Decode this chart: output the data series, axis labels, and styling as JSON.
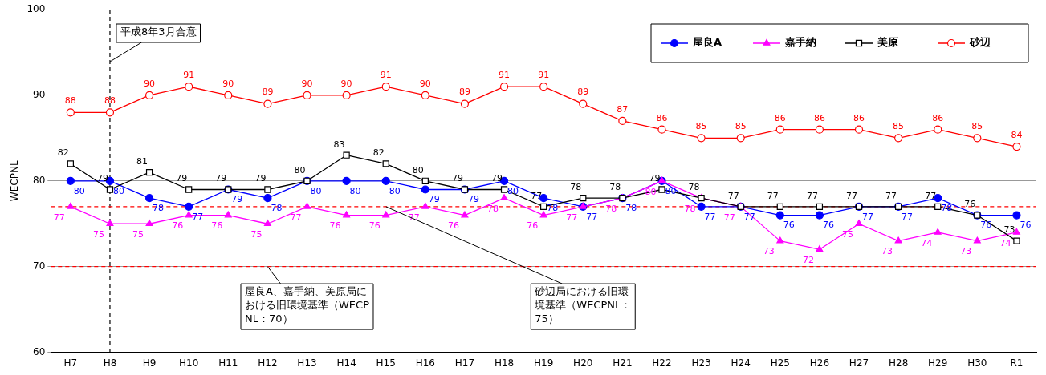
{
  "chart_data": {
    "type": "line",
    "ylabel": "WECPNL",
    "categories": [
      "H7",
      "H8",
      "H9",
      "H10",
      "H11",
      "H12",
      "H13",
      "H14",
      "H15",
      "H16",
      "H17",
      "H18",
      "H19",
      "H20",
      "H21",
      "H22",
      "H23",
      "H24",
      "H25",
      "H26",
      "H27",
      "H28",
      "H29",
      "H30",
      "R1"
    ],
    "series": [
      {
        "name": "屋良A",
        "color": "#0000ff",
        "marker": "circle",
        "values": [
          80,
          80,
          78,
          77,
          79,
          78,
          80,
          80,
          80,
          79,
          79,
          80,
          78,
          77,
          78,
          80,
          77,
          77,
          76,
          76,
          77,
          77,
          78,
          76,
          76
        ]
      },
      {
        "name": "嘉手納",
        "color": "#ff00ff",
        "marker": "triangle",
        "values": [
          77,
          75,
          75,
          76,
          76,
          75,
          77,
          76,
          76,
          77,
          76,
          78,
          76,
          77,
          78,
          80,
          78,
          77,
          73,
          72,
          75,
          73,
          74,
          73,
          74
        ]
      },
      {
        "name": "美原",
        "color": "#000000",
        "marker": "square",
        "values": [
          82,
          79,
          81,
          79,
          79,
          79,
          80,
          83,
          82,
          80,
          79,
          79,
          77,
          78,
          78,
          79,
          78,
          77,
          77,
          77,
          77,
          77,
          77,
          76,
          73
        ]
      },
      {
        "name": "砂辺",
        "color": "#ff0000",
        "marker": "circle",
        "values": [
          88,
          88,
          90,
          91,
          90,
          89,
          90,
          90,
          91,
          90,
          89,
          91,
          91,
          89,
          87,
          86,
          85,
          85,
          86,
          86,
          86,
          85,
          86,
          85,
          84
        ]
      }
    ],
    "ylim": [
      60,
      100
    ],
    "yticks": [
      60,
      70,
      80,
      90,
      100
    ],
    "grid": "y",
    "legend": "top right",
    "data_labels": true,
    "ref_lines": [
      {
        "axis": "x",
        "value": "H8",
        "label": "平成8年3月合意",
        "color": "#000000",
        "line_style": "dashed"
      },
      {
        "axis": "y",
        "value": 70,
        "label": "屋良A、嘉手納、美原局における旧環境基準（WECPNL：70）",
        "color": "#ff0000",
        "line_style": "dashed"
      },
      {
        "axis": "y",
        "value": 77,
        "label": "砂辺局における旧環境基準（WECPNL：75）",
        "color": "#ff0000",
        "line_style": "dashed"
      }
    ]
  }
}
